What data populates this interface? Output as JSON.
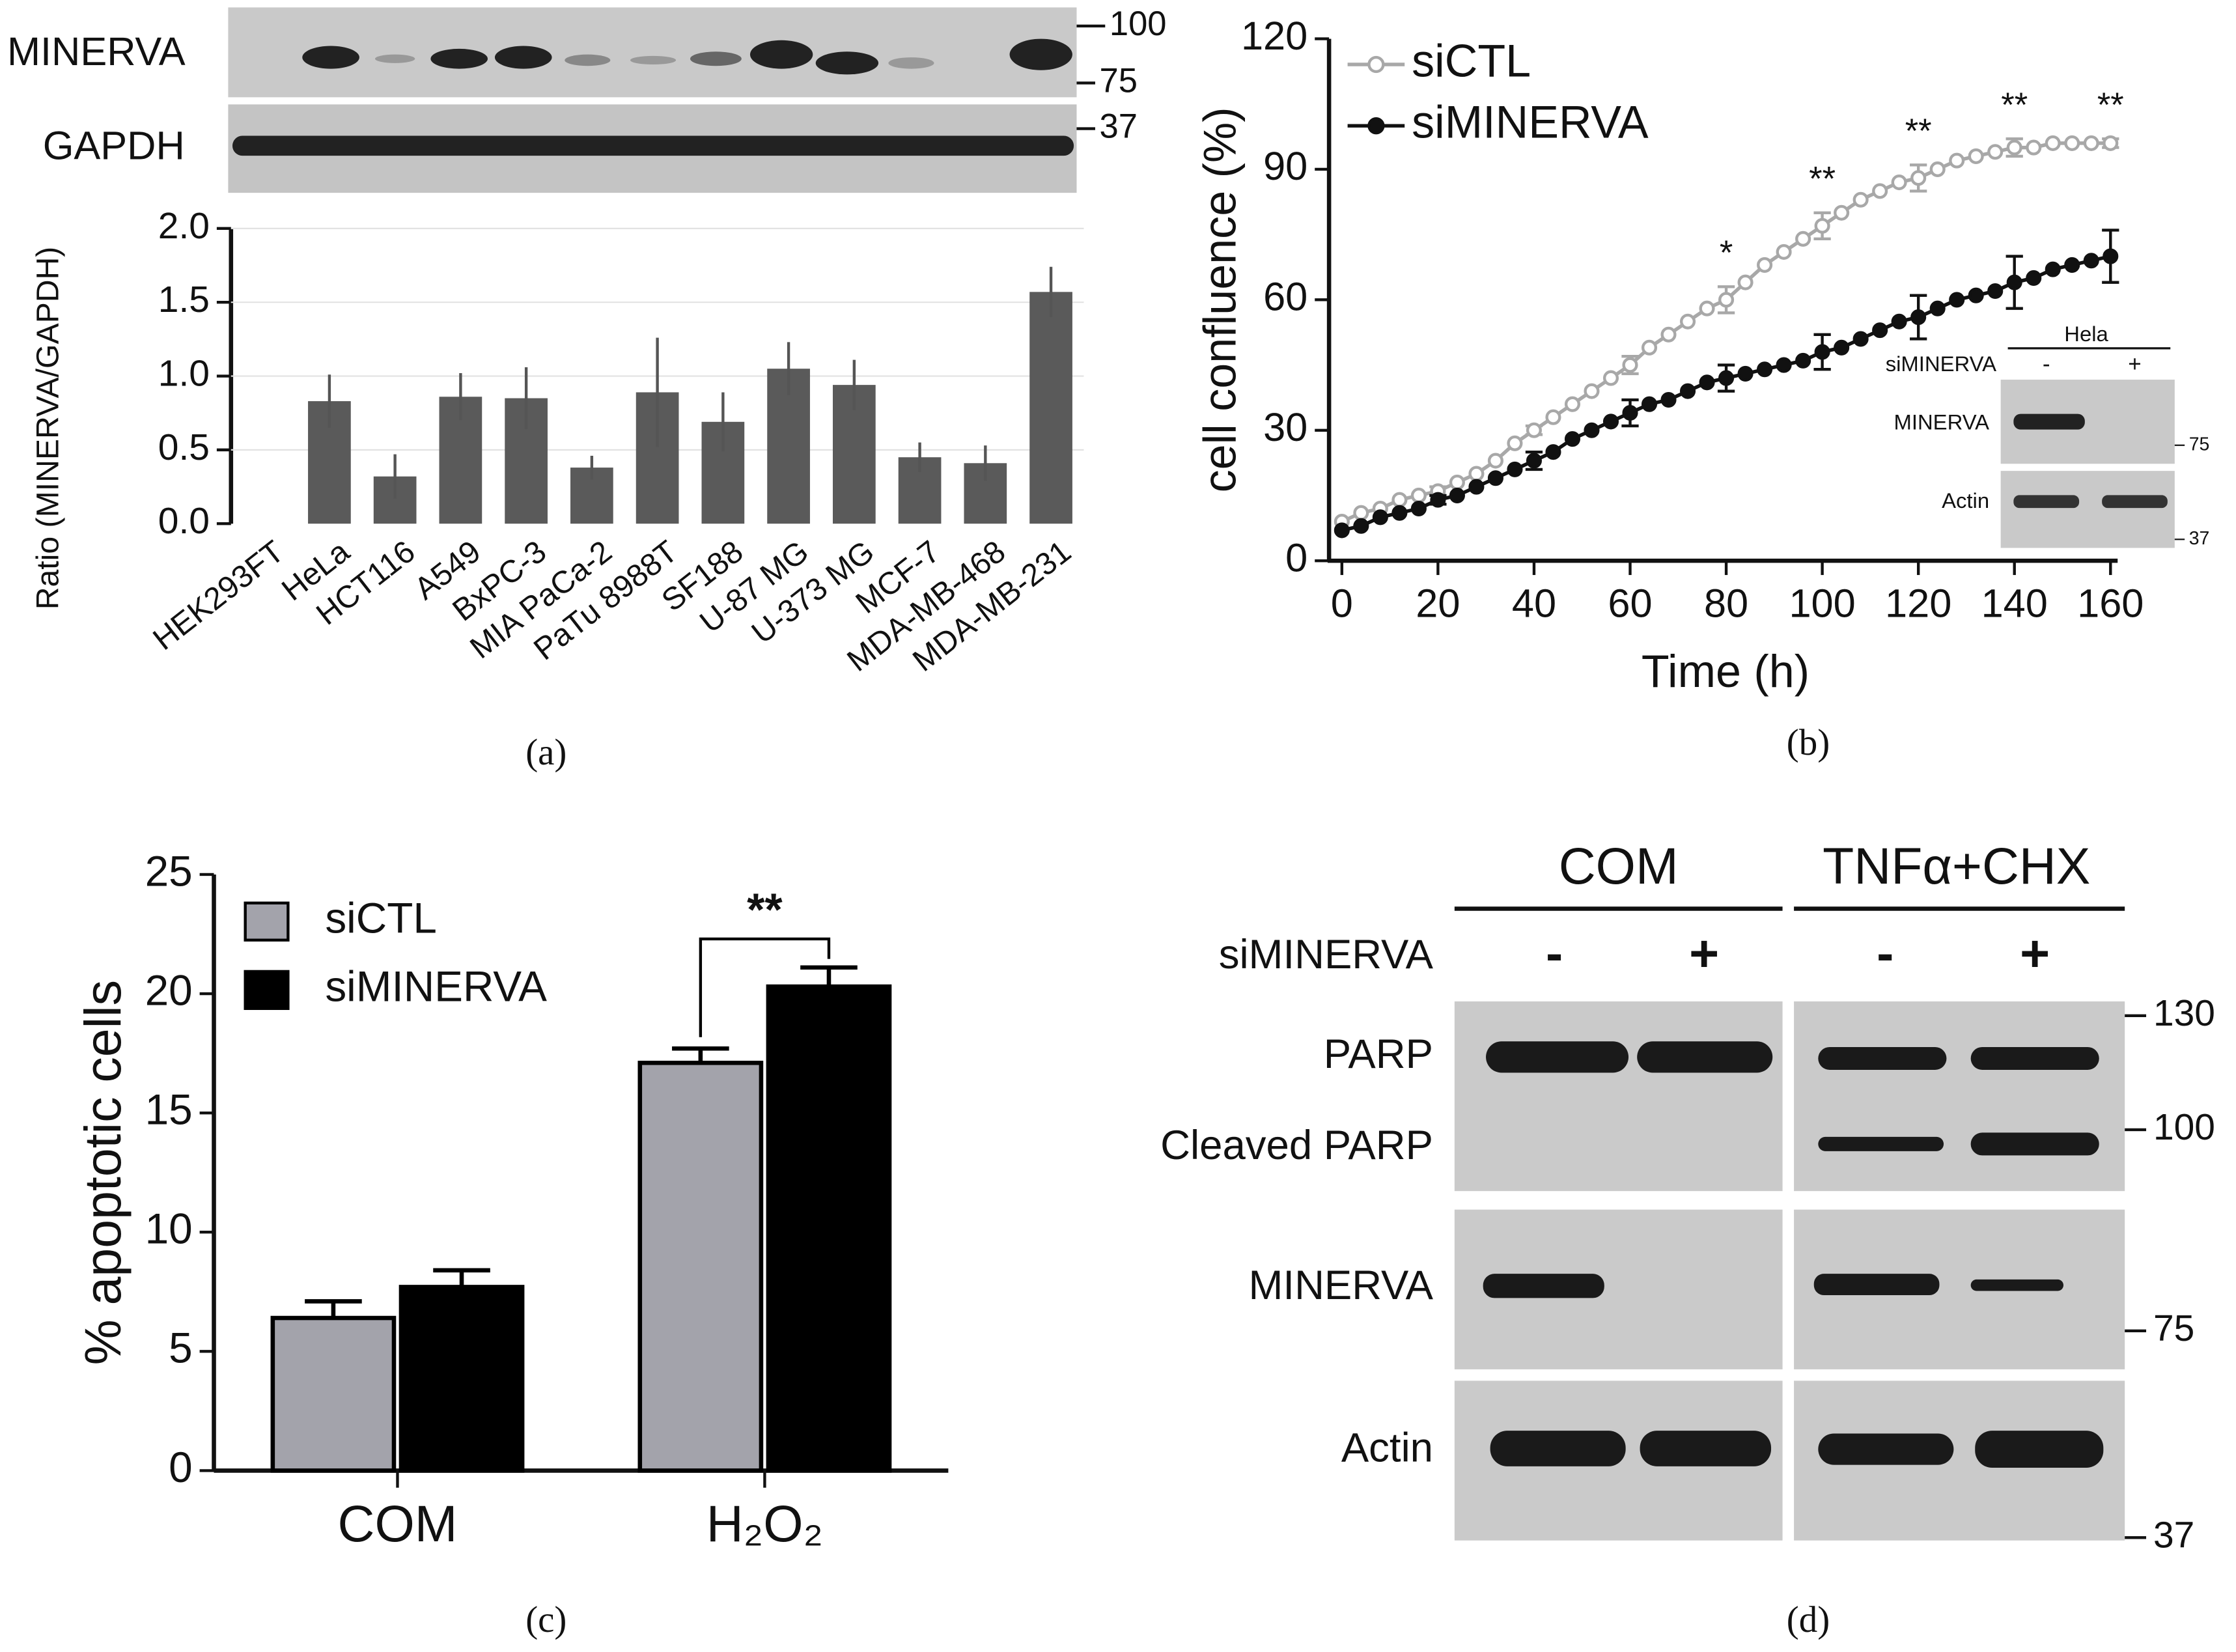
{
  "chart_data": [
    {
      "type": "bar",
      "ylabel": "Ratio (MINERVA/GAPDH)",
      "categories": [
        "HEK293FT",
        "HeLa",
        "HCT116",
        "A549",
        "BxPC-3",
        "MIA PaCa-2",
        "PaTu 8988T",
        "SF188",
        "U-87 MG",
        "U-373 MG",
        "MCF-7",
        "MDA-MB-468",
        "MDA-MB-231"
      ],
      "values": [
        0,
        0.83,
        0.32,
        0.86,
        0.85,
        0.38,
        0.89,
        0.69,
        1.05,
        0.94,
        0.45,
        0.41,
        1.57
      ],
      "errors": [
        null,
        0.18,
        0.15,
        0.16,
        0.21,
        0.08,
        0.37,
        0.2,
        0.18,
        0.17,
        0.1,
        0.12,
        0.17
      ],
      "color": "#5a5a5a",
      "ylim": [
        0,
        2
      ],
      "yticks": [
        {
          "value": 0,
          "label": "0.0"
        },
        0.5,
        {
          "value": 1,
          "label": "1.0"
        },
        1.5,
        {
          "value": 2,
          "label": "2.0"
        }
      ],
      "grid": true
    },
    {
      "type": "line",
      "xlabel": "Time (h)",
      "ylabel": "cell confluence (%)",
      "x": [
        0,
        4,
        8,
        12,
        16,
        20,
        24,
        28,
        32,
        36,
        40,
        44,
        48,
        52,
        56,
        60,
        64,
        68,
        72,
        76,
        80,
        84,
        88,
        92,
        96,
        100,
        104,
        108,
        112,
        116,
        120,
        124,
        128,
        132,
        136,
        140,
        144,
        148,
        152,
        156,
        160
      ],
      "series": [
        {
          "name": "siCTL",
          "color": "#a8a8a8",
          "marker": "open",
          "values": [
            9,
            11,
            12,
            14,
            15,
            16,
            18,
            20,
            23,
            27,
            30,
            33,
            36,
            39,
            42,
            45,
            49,
            52,
            55,
            58,
            60,
            64,
            68,
            71,
            74,
            77,
            80,
            83,
            85,
            87,
            88,
            90,
            92,
            93,
            94,
            95,
            95,
            96,
            96,
            96,
            96
          ],
          "errors": [
            null,
            null,
            null,
            null,
            null,
            1,
            null,
            null,
            null,
            null,
            1,
            null,
            null,
            null,
            null,
            2,
            null,
            null,
            null,
            null,
            3,
            null,
            null,
            null,
            null,
            3,
            null,
            null,
            null,
            null,
            3,
            null,
            null,
            null,
            null,
            2,
            null,
            null,
            null,
            null,
            1
          ]
        },
        {
          "name": "siMINERVA",
          "color": "#111111",
          "marker": "filled",
          "values": [
            7,
            8,
            10,
            11,
            12,
            14,
            15,
            17,
            19,
            21,
            23,
            25,
            28,
            30,
            32,
            34,
            36,
            37,
            39,
            41,
            42,
            43,
            44,
            45,
            46,
            48,
            49,
            51,
            53,
            55,
            56,
            58,
            60,
            61,
            62,
            64,
            65,
            67,
            68,
            69,
            70
          ],
          "errors": [
            null,
            null,
            null,
            null,
            null,
            1,
            null,
            null,
            null,
            null,
            2,
            null,
            null,
            null,
            null,
            3,
            null,
            null,
            null,
            null,
            3,
            null,
            null,
            null,
            null,
            4,
            null,
            null,
            null,
            null,
            5,
            null,
            null,
            null,
            null,
            6,
            null,
            null,
            null,
            null,
            6
          ]
        }
      ],
      "xlim": [
        0,
        160
      ],
      "ylim": [
        0,
        120
      ],
      "xticks": [
        0,
        20,
        40,
        60,
        80,
        100,
        120,
        140,
        160
      ],
      "yticks": [
        0,
        30,
        60,
        90,
        120
      ],
      "annotations": [
        {
          "text": "*",
          "x": 80
        },
        {
          "text": "**",
          "x": 100
        },
        {
          "text": "**",
          "x": 120
        },
        {
          "text": "**",
          "x": 140
        },
        {
          "text": "**",
          "x": 160
        }
      ]
    },
    {
      "type": "grouped-bar",
      "ylabel": "% apoptotic cells",
      "categories": [
        "COM",
        "H₂O₂"
      ],
      "series": [
        {
          "name": "siCTL",
          "color": "#a3a3ab",
          "values": [
            6.4,
            17.1
          ],
          "errors": [
            0.7,
            0.6
          ]
        },
        {
          "name": "siMINERVA",
          "color": "#000000",
          "values": [
            7.7,
            20.3
          ],
          "errors": [
            0.7,
            0.8
          ]
        }
      ],
      "ylim": [
        0,
        25
      ],
      "yticks": [
        0,
        5,
        10,
        15,
        20,
        25
      ],
      "annotations": [
        {
          "text": "**"
        }
      ]
    }
  ],
  "blot_a": {
    "rows": [
      "MINERVA",
      "GAPDH"
    ],
    "markers": [
      "100",
      "75",
      "37"
    ]
  },
  "blot_b": {
    "title": "Hela",
    "condition": "siMINERVA",
    "lanes": [
      "-",
      "+"
    ],
    "rows": [
      "MINERVA",
      "Actin"
    ],
    "markers": [
      "75",
      "37"
    ]
  },
  "blot_d": {
    "groups": [
      "COM",
      "TNFα+CHX"
    ],
    "condition": "siMINERVA",
    "lanes": [
      "-",
      "+",
      "-",
      "+"
    ],
    "rows": [
      "PARP",
      "Cleaved PARP",
      "MINERVA",
      "Actin"
    ],
    "markers": [
      "130",
      "100",
      "75",
      "37"
    ]
  },
  "panel_labels": [
    "(a)",
    "(b)",
    "(c)",
    "(d)"
  ]
}
